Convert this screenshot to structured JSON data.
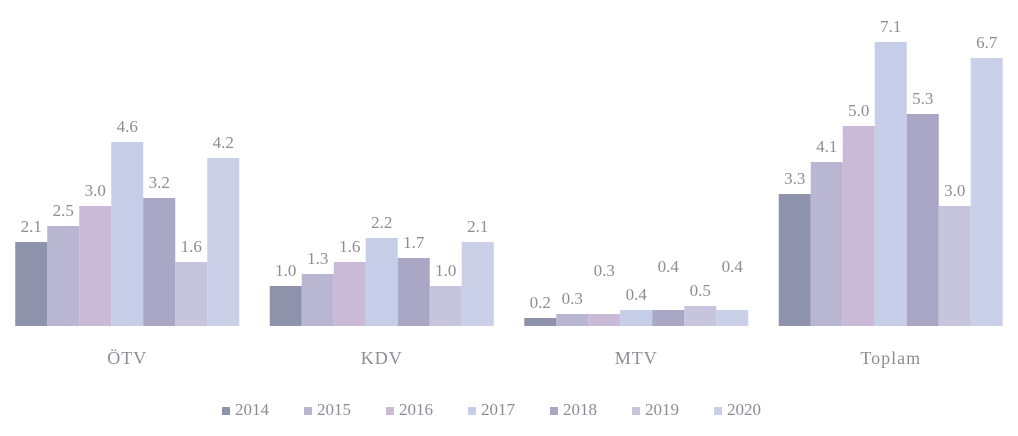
{
  "chart_data": {
    "type": "bar",
    "categories": [
      "ÖTV",
      "KDV",
      "MTV",
      "Toplam"
    ],
    "series": [
      {
        "name": "2014",
        "color": "#8e92aa",
        "values": [
          2.1,
          1.0,
          0.2,
          3.3
        ],
        "value_labels": [
          "2.1",
          "1.0",
          "0.2",
          "3.3"
        ]
      },
      {
        "name": "2015",
        "color": "#b9b6d2",
        "values": [
          2.5,
          1.3,
          0.3,
          4.1
        ],
        "value_labels": [
          "2.5",
          "1.3",
          "0.3",
          "4.1"
        ]
      },
      {
        "name": "2016",
        "color": "#cbb9d8",
        "values": [
          3.0,
          1.6,
          0.3,
          5.0
        ],
        "value_labels": [
          "3.0",
          "1.6",
          "0.3",
          "5.0"
        ]
      },
      {
        "name": "2017",
        "color": "#c6cde8",
        "values": [
          4.6,
          2.2,
          0.4,
          7.1
        ],
        "value_labels": [
          "4.6",
          "2.2",
          "0.4",
          "7.1"
        ]
      },
      {
        "name": "2018",
        "color": "#aaa7c6",
        "values": [
          3.2,
          1.7,
          0.4,
          5.3
        ],
        "value_labels": [
          "3.2",
          "1.7",
          "0.4",
          "5.3"
        ]
      },
      {
        "name": "2019",
        "color": "#c7c5de",
        "values": [
          1.6,
          1.0,
          0.5,
          3.0
        ],
        "value_labels": [
          "1.6",
          "1.0",
          "0.5",
          "3.0"
        ]
      },
      {
        "name": "2020",
        "color": "#c9d0e8",
        "values": [
          4.2,
          2.1,
          0.4,
          6.7
        ],
        "value_labels": [
          "4.2",
          "2.1",
          "0.4",
          "6.7"
        ]
      }
    ],
    "ylim": [
      0,
      7.5
    ]
  }
}
